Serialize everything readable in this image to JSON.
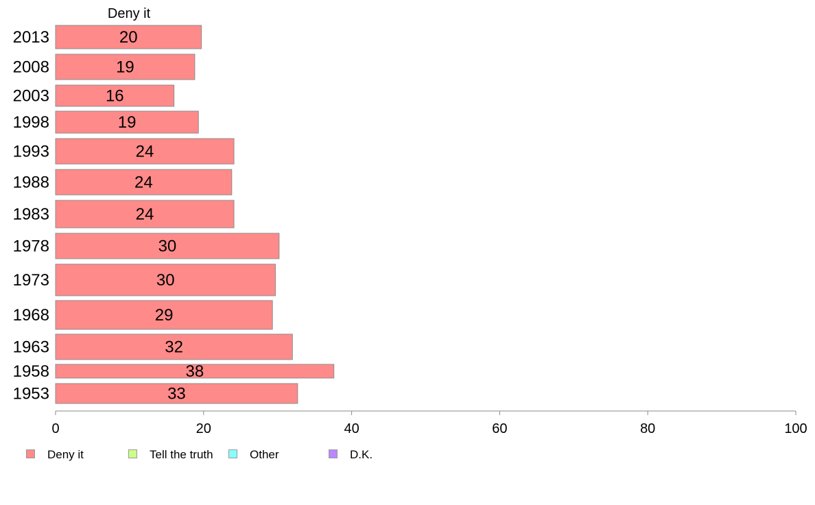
{
  "chart_data": {
    "type": "bar",
    "orientation": "horizontal",
    "title": "Deny it",
    "xlabel": "",
    "ylabel": "",
    "xlim": [
      0,
      100
    ],
    "xticks": [
      "0",
      "20",
      "40",
      "60",
      "80",
      "100"
    ],
    "categories": [
      "2013",
      "2008",
      "2003",
      "1998",
      "1993",
      "1988",
      "1983",
      "1978",
      "1973",
      "1968",
      "1963",
      "1958",
      "1953"
    ],
    "series": [
      {
        "name": "Deny it",
        "color": "#ff8a8a",
        "values": [
          19.7,
          18.8,
          16.0,
          19.3,
          24.1,
          23.8,
          24.1,
          30.2,
          29.7,
          29.3,
          32.0,
          37.6,
          32.7
        ],
        "labels": [
          "20",
          "19",
          "16",
          "19",
          "24",
          "24",
          "24",
          "30",
          "30",
          "29",
          "32",
          "38",
          "33"
        ]
      }
    ],
    "grid": false,
    "legend_position": "bottom-left"
  },
  "legend": {
    "items": [
      {
        "label": "Deny it",
        "color": "#ff8a8a"
      },
      {
        "label": "Tell the truth",
        "color": "#ccff88"
      },
      {
        "label": "Other",
        "color": "#88ffff"
      },
      {
        "label": "D.K.",
        "color": "#bb88ff"
      }
    ]
  }
}
